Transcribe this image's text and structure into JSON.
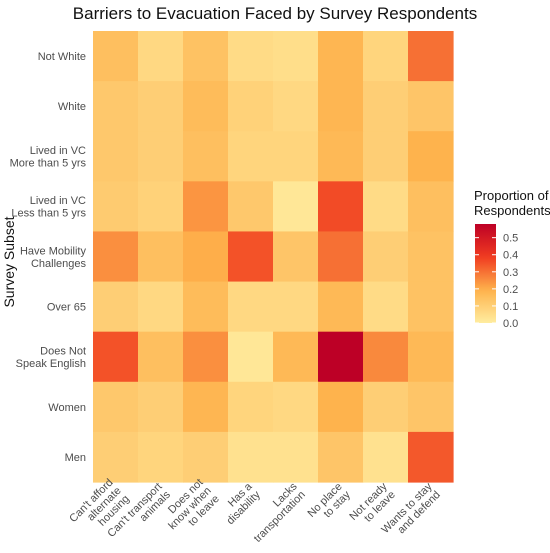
{
  "chart_data": {
    "type": "heatmap",
    "title": "Barriers to Evacuation Faced by Survey Respondents",
    "ylabel": "Survey Subset",
    "xlabel": "",
    "x_categories": [
      "Can't afford alternate housing",
      "Can't transport animals",
      "Does not know when to leave",
      "Has a disability",
      "Lacks transportation",
      "No place to stay",
      "Not ready to leave",
      "Wants to stay and defend"
    ],
    "x_tick_lines": [
      [
        "Can't afford",
        "alternate",
        "housing"
      ],
      [
        "Can't transport",
        "animals"
      ],
      [
        "Does not",
        "know when",
        "to leave"
      ],
      [
        "Has a",
        "disability"
      ],
      [
        "Lacks",
        "transportation"
      ],
      [
        "No place",
        "to stay"
      ],
      [
        "Not ready",
        "to leave"
      ],
      [
        "Wants to stay",
        "and defend"
      ]
    ],
    "y_categories": [
      "Not White",
      "White",
      "Lived in VC More than 5 yrs",
      "Lived in VC Less than 5 yrs",
      "Have Mobility Challenges",
      "Over 65",
      "Does Not Speak English",
      "Women",
      "Men"
    ],
    "y_tick_lines": [
      [
        "Not White"
      ],
      [
        "White"
      ],
      [
        "Lived in VC",
        "More than 5 yrs"
      ],
      [
        "Lived in VC",
        "Less than 5 yrs"
      ],
      [
        "Have Mobility",
        "Challenges"
      ],
      [
        "Over 65"
      ],
      [
        "Does Not",
        "Speak English"
      ],
      [
        "Women"
      ],
      [
        "Men"
      ]
    ],
    "values": [
      [
        0.15,
        0.07,
        0.14,
        0.06,
        0.05,
        0.18,
        0.08,
        0.3
      ],
      [
        0.12,
        0.1,
        0.16,
        0.09,
        0.07,
        0.18,
        0.1,
        0.13
      ],
      [
        0.12,
        0.1,
        0.15,
        0.08,
        0.08,
        0.17,
        0.1,
        0.19
      ],
      [
        0.11,
        0.09,
        0.24,
        0.12,
        0.02,
        0.36,
        0.06,
        0.15
      ],
      [
        0.25,
        0.15,
        0.2,
        0.35,
        0.13,
        0.3,
        0.1,
        0.14
      ],
      [
        0.1,
        0.07,
        0.16,
        0.07,
        0.07,
        0.17,
        0.06,
        0.14
      ],
      [
        0.35,
        0.15,
        0.25,
        0.02,
        0.17,
        0.58,
        0.26,
        0.17
      ],
      [
        0.12,
        0.1,
        0.18,
        0.08,
        0.07,
        0.19,
        0.1,
        0.13
      ],
      [
        0.1,
        0.08,
        0.1,
        0.04,
        0.04,
        0.13,
        0.04,
        0.34
      ]
    ],
    "color_range": [
      0.0,
      0.58
    ],
    "colors": [
      "#ffeda0",
      "#feb24c",
      "#f03b20",
      "#bd0026"
    ],
    "legend": {
      "title_lines": [
        "Proportion of",
        "Respondents"
      ],
      "ticks": [
        0.0,
        0.1,
        0.2,
        0.3,
        0.4,
        0.5
      ],
      "tick_labels": [
        "0.0",
        "0.1",
        "0.2",
        "0.3",
        "0.4",
        "0.5"
      ],
      "placement": "right"
    },
    "grid": false
  }
}
